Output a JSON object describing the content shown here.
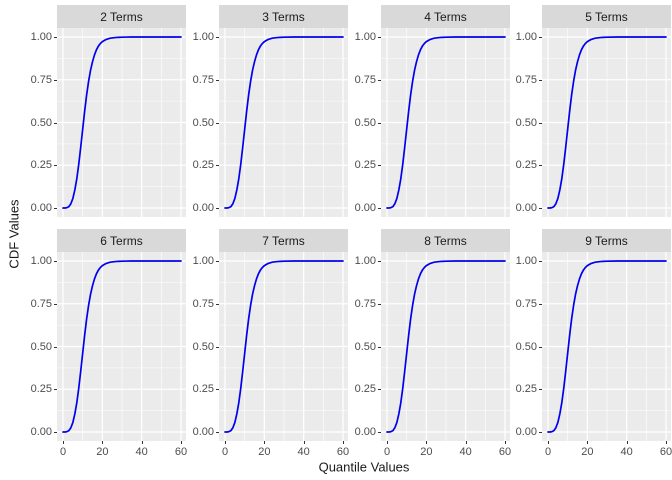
{
  "figure": {
    "y_axis_title": "CDF Values",
    "x_axis_title": "Quantile Values",
    "y_tick_labels": [
      "1.00",
      "0.75",
      "0.50",
      "0.25",
      "0.00"
    ],
    "y_tick_values": [
      1.0,
      0.75,
      0.5,
      0.25,
      0.0
    ],
    "x_tick_labels": [
      "0",
      "20",
      "40",
      "60"
    ],
    "x_tick_values": [
      0,
      20,
      40,
      60
    ],
    "colors": {
      "background": "#FFFFFF",
      "panel_background": "#EBEBEB",
      "strip_background": "#D9D9D9",
      "grid_line": "#FFFFFF",
      "curve": "#0000EE",
      "tick_label": "#4D4D4D",
      "tick_mark": "#333333",
      "axis_title": "#1A1A1A"
    }
  },
  "chart_data": {
    "type": "line",
    "title": "",
    "xlabel": "Quantile Values",
    "ylabel": "CDF Values",
    "xlim": [
      0,
      60
    ],
    "ylim": [
      0,
      1
    ],
    "x_major_gridlines": [
      0,
      20,
      40,
      60
    ],
    "x_minor_gridlines": [
      10,
      30,
      50
    ],
    "y_major_gridlines": [
      0,
      0.25,
      0.5,
      0.75,
      1.0
    ],
    "y_minor_gridlines": [
      0.125,
      0.375,
      0.625,
      0.875
    ],
    "legend": "none",
    "grid": "on",
    "x": [
      0,
      1,
      2,
      3,
      4,
      5,
      6,
      7,
      8,
      9,
      10,
      11,
      12,
      13,
      14,
      15,
      16,
      17,
      18,
      19,
      20,
      22,
      24,
      26,
      28,
      30,
      35,
      40,
      45,
      50,
      55,
      60
    ],
    "facets": [
      {
        "label": "2 Terms",
        "values": [
          0,
          0,
          0.002,
          0.008,
          0.025,
          0.055,
          0.105,
          0.17,
          0.255,
          0.355,
          0.46,
          0.565,
          0.66,
          0.74,
          0.805,
          0.855,
          0.895,
          0.925,
          0.947,
          0.962,
          0.973,
          0.986,
          0.993,
          0.996,
          0.998,
          0.999,
          1,
          1,
          1,
          1,
          1,
          1
        ]
      },
      {
        "label": "3 Terms",
        "values": [
          0,
          0,
          0.002,
          0.008,
          0.025,
          0.055,
          0.105,
          0.17,
          0.255,
          0.355,
          0.46,
          0.565,
          0.66,
          0.74,
          0.805,
          0.855,
          0.895,
          0.925,
          0.947,
          0.962,
          0.973,
          0.986,
          0.993,
          0.996,
          0.998,
          0.999,
          1,
          1,
          1,
          1,
          1,
          1
        ]
      },
      {
        "label": "4 Terms",
        "values": [
          0,
          0,
          0.002,
          0.008,
          0.025,
          0.055,
          0.105,
          0.17,
          0.255,
          0.355,
          0.46,
          0.565,
          0.66,
          0.74,
          0.805,
          0.855,
          0.895,
          0.925,
          0.947,
          0.962,
          0.973,
          0.986,
          0.993,
          0.996,
          0.998,
          0.999,
          1,
          1,
          1,
          1,
          1,
          1
        ]
      },
      {
        "label": "5 Terms",
        "values": [
          0,
          0,
          0.002,
          0.008,
          0.025,
          0.055,
          0.105,
          0.17,
          0.255,
          0.355,
          0.46,
          0.565,
          0.66,
          0.74,
          0.805,
          0.855,
          0.895,
          0.925,
          0.947,
          0.962,
          0.973,
          0.986,
          0.993,
          0.996,
          0.998,
          0.999,
          1,
          1,
          1,
          1,
          1,
          1
        ]
      },
      {
        "label": "6 Terms",
        "values": [
          0,
          0,
          0.002,
          0.008,
          0.025,
          0.055,
          0.105,
          0.17,
          0.255,
          0.355,
          0.46,
          0.565,
          0.66,
          0.74,
          0.805,
          0.855,
          0.895,
          0.925,
          0.947,
          0.962,
          0.973,
          0.986,
          0.993,
          0.996,
          0.998,
          0.999,
          1,
          1,
          1,
          1,
          1,
          1
        ]
      },
      {
        "label": "7 Terms",
        "values": [
          0,
          0,
          0.002,
          0.008,
          0.025,
          0.055,
          0.105,
          0.17,
          0.255,
          0.355,
          0.46,
          0.565,
          0.66,
          0.74,
          0.805,
          0.855,
          0.895,
          0.925,
          0.947,
          0.962,
          0.973,
          0.986,
          0.993,
          0.996,
          0.998,
          0.999,
          1,
          1,
          1,
          1,
          1,
          1
        ]
      },
      {
        "label": "8 Terms",
        "values": [
          0,
          0,
          0.002,
          0.008,
          0.025,
          0.055,
          0.105,
          0.17,
          0.255,
          0.355,
          0.46,
          0.565,
          0.66,
          0.74,
          0.805,
          0.855,
          0.895,
          0.925,
          0.947,
          0.962,
          0.973,
          0.986,
          0.993,
          0.996,
          0.998,
          0.999,
          1,
          1,
          1,
          1,
          1,
          1
        ]
      },
      {
        "label": "9 Terms",
        "values": [
          0,
          0,
          0.002,
          0.008,
          0.025,
          0.055,
          0.105,
          0.17,
          0.255,
          0.355,
          0.46,
          0.565,
          0.66,
          0.74,
          0.805,
          0.855,
          0.895,
          0.925,
          0.947,
          0.962,
          0.973,
          0.986,
          0.993,
          0.996,
          0.998,
          0.999,
          1,
          1,
          1,
          1,
          1,
          1
        ]
      }
    ]
  }
}
